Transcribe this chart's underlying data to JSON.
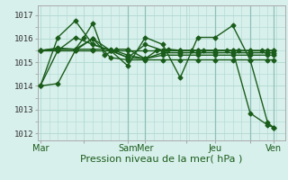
{
  "background_color": "#d8f0ec",
  "grid_color": "#b0d8d0",
  "line_color": "#1a5c1a",
  "xlabel": "Pression niveau de la mer( hPa )",
  "xlabel_fontsize": 8,
  "yticks": [
    1012,
    1013,
    1014,
    1015,
    1016,
    1017
  ],
  "ylim": [
    1011.7,
    1017.4
  ],
  "xtick_labels": [
    "Mar",
    "",
    "Sam",
    "Mer",
    "",
    "Jeu",
    "",
    "Ven"
  ],
  "xtick_positions": [
    0,
    15,
    30,
    36,
    50,
    60,
    72,
    80
  ],
  "vline_positions": [
    30,
    36,
    60,
    72,
    80
  ],
  "xlim": [
    -1,
    84
  ],
  "series": [
    {
      "x": [
        0,
        6,
        12,
        15,
        18,
        22,
        26,
        30,
        36,
        40,
        44,
        48,
        52,
        56,
        60,
        64,
        68,
        72,
        76,
        80
      ],
      "y": [
        1015.5,
        1015.6,
        1015.55,
        1016.05,
        1016.65,
        1015.3,
        1015.55,
        1015.55,
        1015.15,
        1015.5,
        1015.55,
        1015.5,
        1015.5,
        1015.5,
        1015.5,
        1015.5,
        1015.5,
        1015.5,
        1015.5,
        1015.5
      ]
    },
    {
      "x": [
        0,
        6,
        12,
        18,
        24,
        30,
        36,
        42,
        48,
        54,
        60,
        66,
        72,
        78,
        80
      ],
      "y": [
        1015.5,
        1015.55,
        1015.55,
        1016.0,
        1015.5,
        1015.2,
        1015.15,
        1015.4,
        1015.4,
        1015.4,
        1015.4,
        1015.4,
        1015.4,
        1015.4,
        1015.4
      ]
    },
    {
      "x": [
        0,
        6,
        12,
        18,
        24,
        30,
        36,
        42,
        48,
        54,
        60,
        66,
        72,
        78,
        80
      ],
      "y": [
        1015.5,
        1015.5,
        1015.5,
        1015.5,
        1015.5,
        1015.5,
        1015.5,
        1015.5,
        1015.5,
        1015.5,
        1015.5,
        1015.5,
        1015.5,
        1015.5,
        1015.5
      ]
    },
    {
      "x": [
        0,
        6,
        12,
        18,
        24,
        30,
        36,
        42,
        48,
        54,
        60,
        66,
        72,
        78,
        80
      ],
      "y": [
        1015.5,
        1015.55,
        1015.55,
        1015.55,
        1015.55,
        1015.3,
        1015.15,
        1015.3,
        1015.3,
        1015.3,
        1015.3,
        1015.3,
        1015.3,
        1015.3,
        1015.3
      ]
    },
    {
      "x": [
        0,
        6,
        12,
        18,
        24,
        30,
        36,
        42,
        48,
        54,
        60,
        66,
        72,
        78,
        80
      ],
      "y": [
        1014.0,
        1016.05,
        1016.75,
        1015.75,
        1015.5,
        1014.85,
        1016.05,
        1015.75,
        1014.35,
        1016.05,
        1016.05,
        1016.55,
        1015.1,
        1012.45,
        1012.25
      ]
    },
    {
      "x": [
        0,
        6,
        12,
        18,
        24,
        30,
        36,
        42,
        48,
        54,
        60,
        66,
        72,
        78,
        80
      ],
      "y": [
        1014.0,
        1015.5,
        1016.05,
        1015.75,
        1015.5,
        1015.2,
        1015.75,
        1015.5,
        1015.5,
        1015.5,
        1015.5,
        1015.5,
        1012.85,
        1012.35,
        1012.25
      ]
    },
    {
      "x": [
        0,
        6,
        12,
        18,
        24,
        30,
        36,
        42,
        48,
        54,
        60,
        66,
        72,
        78,
        80
      ],
      "y": [
        1014.0,
        1014.1,
        1015.5,
        1016.0,
        1015.2,
        1015.1,
        1015.1,
        1015.1,
        1015.1,
        1015.1,
        1015.1,
        1015.1,
        1015.1,
        1015.1,
        1015.1
      ]
    }
  ],
  "marker": "D",
  "markersize": 2.5,
  "linewidth": 1.0
}
